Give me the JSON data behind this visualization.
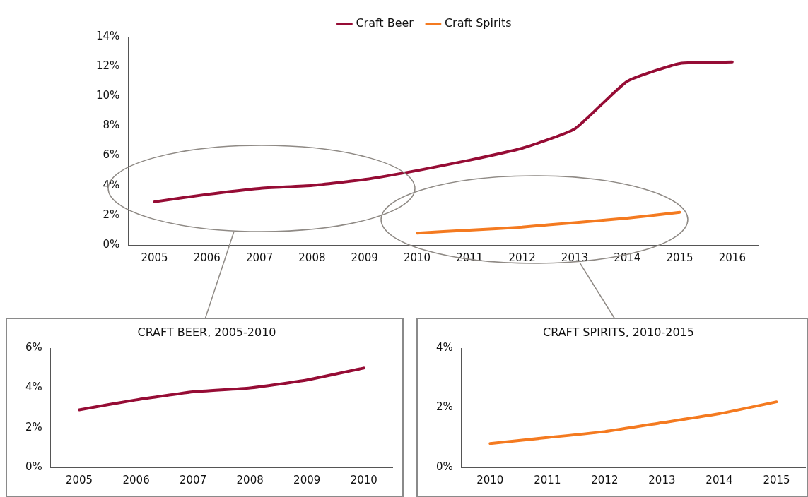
{
  "chart_data": [
    {
      "type": "line",
      "categories": [
        "2005",
        "2006",
        "2007",
        "2008",
        "2009",
        "2010",
        "2011",
        "2012",
        "2013",
        "2014",
        "2015",
        "2016"
      ],
      "series": [
        {
          "name": "Craft Beer",
          "color": "#960c35",
          "values": [
            2.9,
            3.4,
            3.8,
            4.0,
            4.4,
            5.0,
            5.7,
            6.5,
            7.8,
            11.0,
            12.2,
            12.3
          ]
        },
        {
          "name": "Craft Spirits",
          "color": "#f47a20",
          "values": [
            null,
            null,
            null,
            null,
            null,
            0.8,
            1.0,
            1.2,
            1.5,
            1.8,
            2.2,
            null
          ]
        }
      ],
      "ylim": [
        0,
        14
      ],
      "yticks": [
        {
          "value": 0,
          "label": "0%"
        },
        {
          "value": 2,
          "label": "2%"
        },
        {
          "value": 4,
          "label": "4%"
        },
        {
          "value": 6,
          "label": "6%"
        },
        {
          "value": 8,
          "label": "8%"
        },
        {
          "value": 10,
          "label": "10%"
        },
        {
          "value": 12,
          "label": "12%"
        },
        {
          "value": 14,
          "label": "14%"
        }
      ],
      "legend": "top",
      "grid": false,
      "marker": "none",
      "line_style": "solid"
    },
    {
      "type": "line",
      "title": "CRAFT BEER, 2005-2010",
      "categories": [
        "2005",
        "2006",
        "2007",
        "2008",
        "2009",
        "2010"
      ],
      "series": [
        {
          "color": "#960c35",
          "values": [
            2.9,
            3.4,
            3.8,
            4.0,
            4.4,
            5.0
          ]
        }
      ],
      "ylim": [
        0,
        6
      ],
      "yticks": [
        {
          "value": 0,
          "label": "0%"
        },
        {
          "value": 2,
          "label": "2%"
        },
        {
          "value": 4,
          "label": "4%"
        },
        {
          "value": 6,
          "label": "6%"
        }
      ],
      "grid": false,
      "marker": "none",
      "line_style": "solid"
    },
    {
      "type": "line",
      "title": "CRAFT SPIRITS, 2010-2015",
      "categories": [
        "2010",
        "2011",
        "2012",
        "2013",
        "2014",
        "2015"
      ],
      "series": [
        {
          "color": "#f47a20",
          "values": [
            0.8,
            1.0,
            1.2,
            1.5,
            1.8,
            2.2
          ]
        }
      ],
      "ylim": [
        0,
        4
      ],
      "yticks": [
        {
          "value": 0,
          "label": "0%"
        },
        {
          "value": 2,
          "label": "2%"
        },
        {
          "value": 4,
          "label": "4%"
        }
      ],
      "grid": false,
      "marker": "none",
      "line_style": "solid"
    }
  ]
}
